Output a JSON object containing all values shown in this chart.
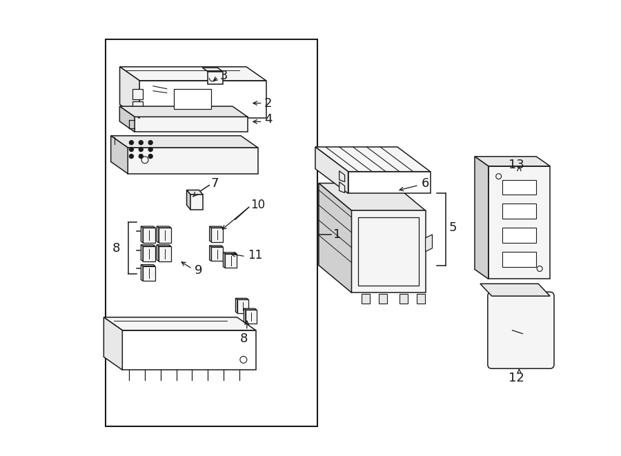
{
  "bg": "#ffffff",
  "lc": "#1a1a1a",
  "fc_light": "#f5f5f5",
  "fc_mid": "#e8e8e8",
  "fc_dark": "#d0d0d0",
  "figsize": [
    9.0,
    6.61
  ],
  "dpi": 100
}
